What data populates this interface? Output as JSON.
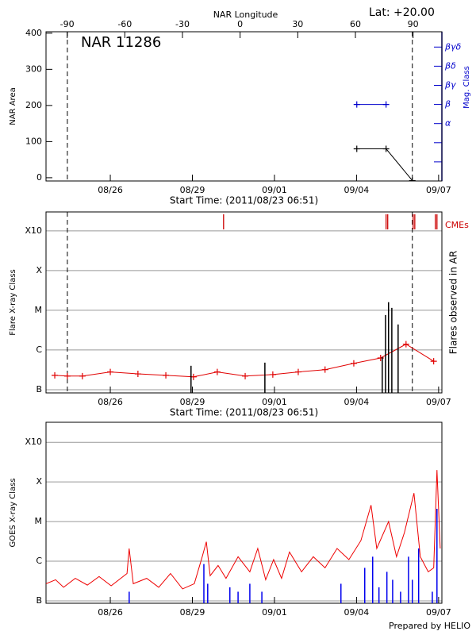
{
  "chart_data": [
    {
      "type": "line",
      "title": "NAR 11286",
      "subtitle": "Lat: +20.00",
      "x2label": "NAR Longitude",
      "ylabel": "NAR Area",
      "y2label": "Mag. Class",
      "xlabel": "Start Time: (2011/08/23 06:51)",
      "xlim": [
        23.65,
        38.12
      ],
      "xticks": [
        {
          "value": 26,
          "label": "08/26"
        },
        {
          "value": 29,
          "label": "08/29"
        },
        {
          "value": 32,
          "label": "09/01"
        },
        {
          "value": 35,
          "label": "09/04"
        },
        {
          "value": 38,
          "label": "09/07"
        }
      ],
      "x2lim": [
        -101,
        105
      ],
      "x2ticks": [
        -90,
        -60,
        -30,
        0,
        30,
        60,
        90
      ],
      "ylim": [
        -9,
        404
      ],
      "yticks": [
        0,
        100,
        200,
        300,
        400
      ],
      "y2lim": [
        0,
        7.8
      ],
      "y2ticks": [
        {
          "value": 1,
          "label": null
        },
        {
          "value": 2,
          "label": null
        },
        {
          "value": 3,
          "label": "α"
        },
        {
          "value": 4,
          "label": "β"
        },
        {
          "value": 5,
          "label": "βγ"
        },
        {
          "value": 6,
          "label": "βδ"
        },
        {
          "value": 7,
          "label": "βγδ"
        }
      ],
      "y2color": "#0000cc",
      "grid": false,
      "log_scale": false,
      "vlines": [
        24.43,
        37.04
      ],
      "series": [
        {
          "style": "line",
          "marker": "+",
          "color": "#000000",
          "x": [
            35.01,
            36.08,
            37.04
          ],
          "values": [
            80,
            80,
            -8
          ]
        },
        {
          "style": "line",
          "marker": "+",
          "color": "#0000cc",
          "axis": "y2",
          "x": [
            35.01,
            36.08
          ],
          "values": [
            4,
            4
          ]
        }
      ]
    },
    {
      "type": "line",
      "ylabel": "Flare X-ray Class",
      "y2label": "Flares observed in AR",
      "xlabel": "Start Time: (2011/08/23 06:51)",
      "xlim": [
        23.65,
        38.12
      ],
      "xticks": [
        {
          "value": 26,
          "label": "08/26"
        },
        {
          "value": 29,
          "label": "08/29"
        },
        {
          "value": 32,
          "label": "09/01"
        },
        {
          "value": 35,
          "label": "09/04"
        },
        {
          "value": 38,
          "label": "09/07"
        }
      ],
      "ylim": [
        8.3e-08,
        0.003
      ],
      "yticks": [
        {
          "value": 1e-07,
          "label": "B"
        },
        {
          "value": 1e-06,
          "label": "C"
        },
        {
          "value": 1e-05,
          "label": "M"
        },
        {
          "value": 0.0001,
          "label": "X"
        },
        {
          "value": 0.001,
          "label": "X10"
        }
      ],
      "grid": true,
      "log_scale": true,
      "vlines": [
        24.43,
        37.04
      ],
      "series": [
        {
          "style": "line",
          "marker": "+",
          "color": "#e00000",
          "x": [
            23.97,
            24.43,
            24.98,
            26.0,
            27.01,
            28.03,
            29.04,
            29.91,
            30.93,
            31.94,
            32.87,
            33.85,
            34.9,
            35.88,
            36.81,
            37.82
          ],
          "values": [
            2.3e-07,
            2.2e-07,
            2.2e-07,
            2.8e-07,
            2.5e-07,
            2.3e-07,
            2.1e-07,
            2.8e-07,
            2.2e-07,
            2.4e-07,
            2.8e-07,
            3.2e-07,
            4.6e-07,
            6.3e-07,
            1.4e-06,
            5.2e-07
          ]
        },
        {
          "style": "spikes",
          "color": "#000000",
          "x": [
            28.95,
            31.65,
            35.94,
            36.06,
            36.17,
            36.29,
            36.52
          ],
          "values": [
            4e-07,
            4.8e-07,
            6.6e-07,
            7.6e-06,
            1.6e-05,
            1.15e-05,
            4.4e-06
          ]
        },
        {
          "style": "ticks",
          "name": "CMEs",
          "color": "#cc0000",
          "x": [
            30.14,
            36.08,
            36.14,
            37.07,
            37.13,
            37.88,
            37.94
          ]
        }
      ]
    },
    {
      "type": "line",
      "ylabel": "GOES X-ray Class",
      "xlim": [
        23.65,
        38.12
      ],
      "xticks": [
        {
          "value": 26,
          "label": "08/26"
        },
        {
          "value": 29,
          "label": "08/29"
        },
        {
          "value": 32,
          "label": "09/01"
        },
        {
          "value": 35,
          "label": "09/04"
        },
        {
          "value": 38,
          "label": "09/07"
        }
      ],
      "ylim": [
        8.7e-08,
        0.0032
      ],
      "yticks": [
        {
          "value": 1e-07,
          "label": "B"
        },
        {
          "value": 1e-06,
          "label": "C"
        },
        {
          "value": 1e-05,
          "label": "M"
        },
        {
          "value": 0.0001,
          "label": "X"
        },
        {
          "value": 0.001,
          "label": "X10"
        }
      ],
      "grid": true,
      "log_scale": true,
      "series": [
        {
          "style": "line",
          "color": "#ee0000",
          "x": [
            23.65,
            24.0,
            24.29,
            24.72,
            25.16,
            25.59,
            26.03,
            26.61,
            26.69,
            26.84,
            27.33,
            27.77,
            28.2,
            28.64,
            29.07,
            29.36,
            29.51,
            29.65,
            29.94,
            30.23,
            30.67,
            31.1,
            31.39,
            31.68,
            31.97,
            32.26,
            32.55,
            32.99,
            33.42,
            33.85,
            34.29,
            34.72,
            35.16,
            35.53,
            35.74,
            36.17,
            36.46,
            36.75,
            37.1,
            37.33,
            37.62,
            37.82,
            37.94,
            38.06
          ],
          "values": [
            2.7e-07,
            3.4e-07,
            2.2e-07,
            3.7e-07,
            2.5e-07,
            4.1e-07,
            2.4e-07,
            4.9e-07,
            2.1e-06,
            2.7e-07,
            3.7e-07,
            2.2e-07,
            4.9e-07,
            2e-07,
            2.7e-07,
            1.3e-06,
            3.1e-06,
            4.3e-07,
            7.8e-07,
            3.7e-07,
            1.3e-06,
            5.4e-07,
            2.1e-06,
            3.4e-07,
            1.1e-06,
            3.7e-07,
            1.7e-06,
            5.4e-07,
            1.3e-06,
            6.8e-07,
            2.1e-06,
            1.1e-06,
            3.3e-06,
            2.6e-05,
            2.1e-06,
            1e-05,
            1.3e-06,
            5.3e-06,
            5.2e-05,
            1.3e-06,
            5.4e-07,
            6.8e-07,
            0.0002,
            2.1e-06
          ]
        },
        {
          "style": "spikes",
          "color": "#0000ee",
          "x": [
            26.69,
            29.42,
            29.56,
            30.37,
            30.67,
            31.1,
            31.54,
            34.43,
            35.3,
            35.59,
            35.82,
            36.11,
            36.32,
            36.61,
            36.9,
            37.04,
            37.27,
            37.77,
            37.94
          ],
          "values": [
            1.7e-07,
            8.5e-07,
            2.7e-07,
            2.2e-07,
            1.7e-07,
            2.7e-07,
            1.7e-07,
            2.7e-07,
            6.8e-07,
            1.3e-06,
            2.2e-07,
            5.4e-07,
            3.4e-07,
            1.7e-07,
            1.3e-06,
            3.4e-07,
            2.1e-06,
            1.7e-07,
            2.1e-05
          ]
        }
      ]
    }
  ],
  "footer": "Prepared by HELIO"
}
